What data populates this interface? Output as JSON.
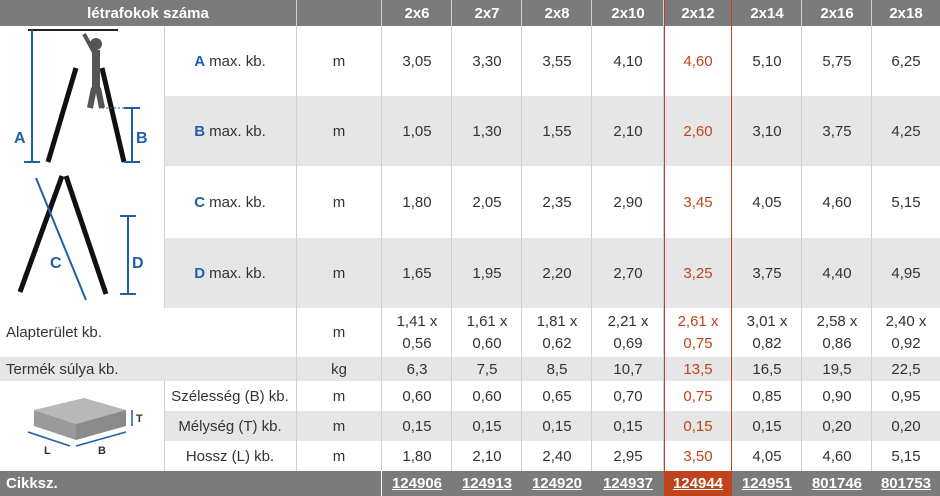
{
  "header": {
    "title": "létrafokok száma",
    "columns": [
      "2x6",
      "2x7",
      "2x8",
      "2x10",
      "2x12",
      "2x14",
      "2x16",
      "2x18"
    ]
  },
  "highlight_color": "#c0441b",
  "label_letter_color": "#1f5fa8",
  "rows": {
    "a": {
      "letter": "A",
      "label": "max. kb.",
      "unit": "m",
      "values": [
        "3,05",
        "3,30",
        "3,55",
        "4,10",
        "4,60",
        "5,10",
        "5,75",
        "6,25"
      ]
    },
    "b": {
      "letter": "B",
      "label": "max. kb.",
      "unit": "m",
      "values": [
        "1,05",
        "1,30",
        "1,55",
        "2,10",
        "2,60",
        "3,10",
        "3,75",
        "4,25"
      ]
    },
    "c": {
      "letter": "C",
      "label": "max. kb.",
      "unit": "m",
      "values": [
        "1,80",
        "2,05",
        "2,35",
        "2,90",
        "3,45",
        "4,05",
        "4,60",
        "5,15"
      ]
    },
    "d": {
      "letter": "D",
      "label": "max. kb.",
      "unit": "m",
      "values": [
        "1,65",
        "1,95",
        "2,20",
        "2,70",
        "3,25",
        "3,75",
        "4,40",
        "4,95"
      ]
    },
    "area": {
      "label": "Alapterület kb.",
      "unit": "m",
      "values_top": [
        "1,41 x",
        "1,61 x",
        "1,81 x",
        "2,21 x",
        "2,61 x",
        "3,01 x",
        "2,58 x",
        "2,40 x"
      ],
      "values_bottom": [
        "0,56",
        "0,60",
        "0,62",
        "0,69",
        "0,75",
        "0,82",
        "0,86",
        "0,92"
      ]
    },
    "weight": {
      "label": "Termék súlya kb.",
      "unit": "kg",
      "values": [
        "6,3",
        "7,5",
        "8,5",
        "10,7",
        "13,5",
        "16,5",
        "19,5",
        "22,5"
      ]
    },
    "width": {
      "label": "Szélesség (B) kb.",
      "unit": "m",
      "values": [
        "0,60",
        "0,60",
        "0,65",
        "0,70",
        "0,75",
        "0,85",
        "0,90",
        "0,95"
      ]
    },
    "depth": {
      "label": "Mélység (T) kb.",
      "unit": "m",
      "values": [
        "0,15",
        "0,15",
        "0,15",
        "0,15",
        "0,15",
        "0,15",
        "0,20",
        "0,20"
      ]
    },
    "length": {
      "label": "Hossz (L) kb.",
      "unit": "m",
      "values": [
        "1,80",
        "2,10",
        "2,40",
        "2,95",
        "3,50",
        "4,05",
        "4,60",
        "5,15"
      ]
    }
  },
  "footer": {
    "label": "Cikksz.",
    "codes": [
      "124906",
      "124913",
      "124920",
      "124937",
      "124944",
      "124951",
      "801746",
      "801753"
    ]
  },
  "diagram_labels": {
    "a": "A",
    "b": "B",
    "c": "C",
    "d": "D",
    "t": "T",
    "l": "L",
    "box_b": "B"
  }
}
